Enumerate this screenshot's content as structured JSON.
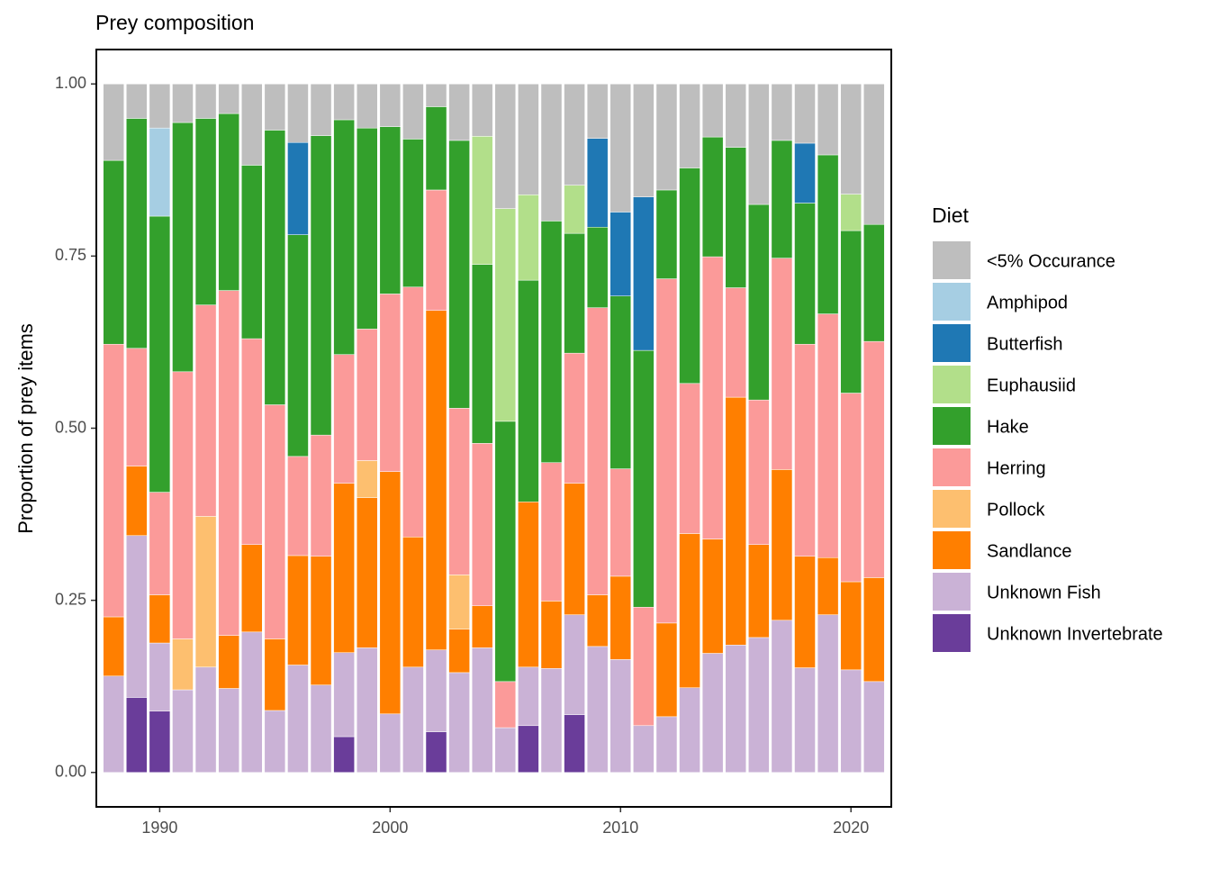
{
  "chart_data": {
    "type": "stacked_bar",
    "title": "Prey composition",
    "y_label": "Proportion of prey items",
    "legend_title": "Diet",
    "legend_position": "right",
    "grid": false,
    "x": [
      1988,
      1989,
      1990,
      1991,
      1992,
      1993,
      1994,
      1995,
      1996,
      1997,
      1998,
      1999,
      2000,
      2001,
      2002,
      2003,
      2004,
      2005,
      2006,
      2007,
      2008,
      2009,
      2010,
      2011,
      2012,
      2013,
      2014,
      2015,
      2016,
      2017,
      2018,
      2019,
      2020,
      2021
    ],
    "xlim": [
      1987.25,
      2021.75
    ],
    "xticks": [
      1990,
      2000,
      2010,
      2020
    ],
    "ylim": [
      -0.05,
      1.05
    ],
    "yticks": [
      {
        "value": 0,
        "label": "0.00"
      },
      {
        "value": 0.25,
        "label": "0.25"
      },
      {
        "value": 0.5,
        "label": "0.50"
      },
      {
        "value": 0.75,
        "label": "0.75"
      },
      {
        "value": 1,
        "label": "1.00"
      }
    ],
    "series": [
      {
        "name": "<5% Occurance",
        "color": "#bebebe",
        "values": [
          0.111,
          0.05,
          0.064,
          0.056,
          0.05,
          0.043,
          0.118,
          0.067,
          0.085,
          0.075,
          0.052,
          0.064,
          0.062,
          0.08,
          0.033,
          0.082,
          0.076,
          0.181,
          0.161,
          0.199,
          0.147,
          0.079,
          0.186,
          0.164,
          0.154,
          0.122,
          0.077,
          0.092,
          0.175,
          0.082,
          0.086,
          0.103,
          0.16,
          0.204
        ]
      },
      {
        "name": "Amphipod",
        "color": "#a6cee3",
        "values": [
          0,
          0,
          0.128,
          0,
          0,
          0,
          0,
          0,
          0,
          0,
          0,
          0,
          0,
          0,
          0,
          0,
          0,
          0,
          0,
          0,
          0,
          0,
          0,
          0,
          0,
          0,
          0,
          0,
          0,
          0,
          0,
          0,
          0,
          0
        ]
      },
      {
        "name": "Butterfish",
        "color": "#1f78b4",
        "values": [
          0,
          0,
          0,
          0,
          0,
          0,
          0,
          0,
          0.134,
          0,
          0,
          0,
          0,
          0,
          0,
          0,
          0,
          0,
          0,
          0,
          0,
          0.129,
          0.122,
          0.223,
          0,
          0,
          0,
          0,
          0,
          0,
          0.087,
          0,
          0,
          0
        ]
      },
      {
        "name": "Euphausiid",
        "color": "#b2df8a",
        "values": [
          0,
          0,
          0,
          0,
          0,
          0,
          0,
          0,
          0,
          0,
          0,
          0,
          0,
          0,
          0,
          0,
          0.186,
          0.309,
          0.124,
          0,
          0.07,
          0,
          0,
          0,
          0,
          0,
          0,
          0,
          0,
          0,
          0,
          0,
          0.053,
          0
        ]
      },
      {
        "name": "Hake",
        "color": "#33a02c",
        "values": [
          0.267,
          0.334,
          0.401,
          0.362,
          0.271,
          0.257,
          0.252,
          0.399,
          0.322,
          0.435,
          0.341,
          0.292,
          0.243,
          0.215,
          0.121,
          0.389,
          0.26,
          0.378,
          0.322,
          0.351,
          0.174,
          0.117,
          0.251,
          0.373,
          0.129,
          0.313,
          0.174,
          0.204,
          0.284,
          0.171,
          0.205,
          0.231,
          0.236,
          0.17
        ]
      },
      {
        "name": "Herring",
        "color": "#fb9a99",
        "values": [
          0.396,
          0.171,
          0.149,
          0.388,
          0.307,
          0.501,
          0.299,
          0.34,
          0.144,
          0.176,
          0.187,
          0.191,
          0.258,
          0.363,
          0.175,
          0.242,
          0.236,
          0.067,
          0,
          0.201,
          0.189,
          0.417,
          0.156,
          0.172,
          0.5,
          0.218,
          0.41,
          0.159,
          0.21,
          0.307,
          0.308,
          0.354,
          0.274,
          0.343
        ]
      },
      {
        "name": "Pollock",
        "color": "#fdbf6f",
        "values": [
          0,
          0,
          0,
          0.074,
          0.219,
          0,
          0,
          0,
          0,
          0,
          0,
          0.054,
          0,
          0,
          0,
          0.079,
          0,
          0,
          0,
          0,
          0,
          0,
          0,
          0,
          0,
          0,
          0,
          0,
          0,
          0,
          0,
          0,
          0,
          0
        ]
      },
      {
        "name": "Sandlance",
        "color": "#ff7f00",
        "values": [
          0.086,
          0.101,
          0.07,
          0,
          0,
          0.077,
          0.127,
          0.104,
          0.159,
          0.187,
          0.246,
          0.218,
          0.352,
          0.189,
          0.493,
          0.063,
          0.061,
          0,
          0.24,
          0.098,
          0.191,
          0.075,
          0.121,
          0,
          0.136,
          0.224,
          0.166,
          0.36,
          0.135,
          0.219,
          0.162,
          0.083,
          0.128,
          0.151
        ]
      },
      {
        "name": "Unknown Fish",
        "color": "#cab2d6",
        "values": [
          0.14,
          0.235,
          0.099,
          0.12,
          0.153,
          0.122,
          0.204,
          0.09,
          0.156,
          0.127,
          0.122,
          0.181,
          0.085,
          0.153,
          0.119,
          0.145,
          0.181,
          0.065,
          0.085,
          0.151,
          0.145,
          0.183,
          0.164,
          0.068,
          0.081,
          0.123,
          0.173,
          0.185,
          0.196,
          0.221,
          0.152,
          0.229,
          0.149,
          0.132
        ]
      },
      {
        "name": "Unknown Invertebrate",
        "color": "#6a3d9a",
        "values": [
          0,
          0.109,
          0.089,
          0,
          0,
          0,
          0,
          0,
          0,
          0,
          0.052,
          0,
          0,
          0,
          0.059,
          0,
          0,
          0,
          0.068,
          0,
          0.084,
          0,
          0,
          0,
          0,
          0,
          0,
          0,
          0,
          0,
          0,
          0,
          0,
          0
        ]
      }
    ]
  }
}
